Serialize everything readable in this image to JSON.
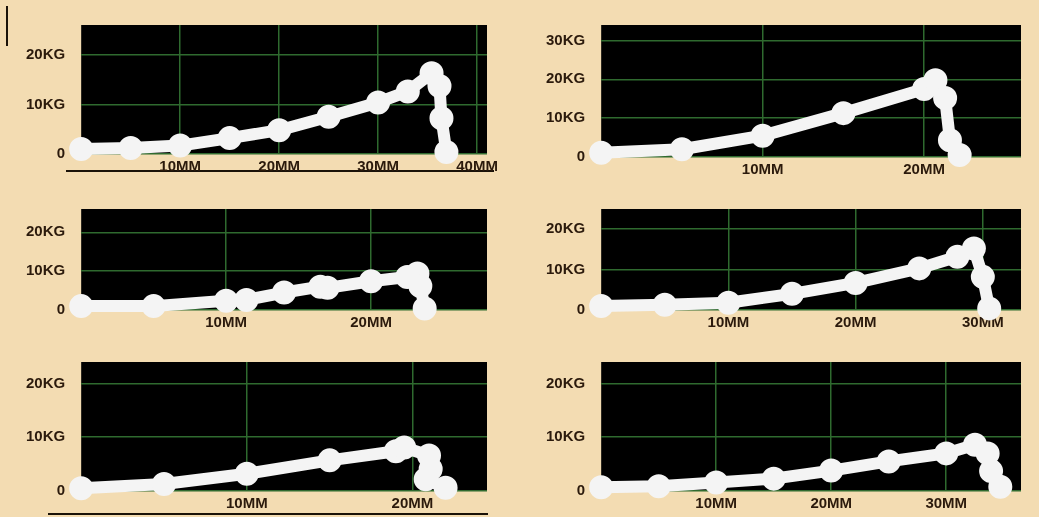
{
  "chart_data": [
    {
      "type": "line",
      "series": [
        {
          "color": "#f4f4f4",
          "x": [
            0,
            5,
            10,
            15,
            20,
            25,
            30,
            33,
            35.4,
            36.2,
            36.4,
            36.9
          ],
          "values": [
            1,
            1.2,
            1.7,
            3.2,
            4.8,
            7.5,
            10.4,
            12.6,
            16.3,
            13.7,
            7.2,
            0.4
          ]
        }
      ],
      "xlim": [
        0,
        41
      ],
      "xticks": [
        {
          "value": 10,
          "label": "10MM"
        },
        {
          "value": 20,
          "label": "20MM"
        },
        {
          "value": 30,
          "label": "30MM"
        },
        {
          "value": 40,
          "label": "40MM"
        }
      ],
      "ylim": [
        0,
        26
      ],
      "yticks": [
        {
          "value": 0,
          "label": "0"
        },
        {
          "value": 10,
          "label": "10KG"
        },
        {
          "value": 20,
          "label": "20KG"
        }
      ],
      "grid": true,
      "marker": "circle"
    },
    {
      "type": "line",
      "series": [
        {
          "color": "#f4f4f4",
          "x": [
            0,
            5,
            10,
            15,
            20,
            20.7,
            21.3,
            21.6,
            22.2
          ],
          "values": [
            1.1,
            2,
            5.5,
            11.3,
            17.5,
            19.8,
            15.2,
            4.3,
            0.5
          ]
        }
      ],
      "xlim": [
        0,
        26
      ],
      "xticks": [
        {
          "value": 10,
          "label": "10MM"
        },
        {
          "value": 20,
          "label": "20MM"
        }
      ],
      "ylim": [
        0,
        34
      ],
      "yticks": [
        {
          "value": 0,
          "label": "0"
        },
        {
          "value": 10,
          "label": "10KG"
        },
        {
          "value": 20,
          "label": "20KG"
        },
        {
          "value": 30,
          "label": "30KG"
        }
      ],
      "grid": true,
      "marker": "circle"
    },
    {
      "type": "line",
      "series": [
        {
          "color": "#f4f4f4",
          "x": [
            0,
            5,
            10,
            11.4,
            14,
            16.5,
            17,
            20,
            22.5,
            23.2,
            23.4,
            23.7
          ],
          "values": [
            1,
            1,
            2.4,
            2.6,
            4.5,
            6,
            5.7,
            7.4,
            8.5,
            9.4,
            6.2,
            0.4
          ]
        }
      ],
      "xlim": [
        0,
        28
      ],
      "xticks": [
        {
          "value": 10,
          "label": "10MM"
        },
        {
          "value": 20,
          "label": "20MM"
        }
      ],
      "ylim": [
        0,
        26
      ],
      "yticks": [
        {
          "value": 0,
          "label": "0"
        },
        {
          "value": 10,
          "label": "10KG"
        },
        {
          "value": 20,
          "label": "20KG"
        }
      ],
      "grid": true,
      "marker": "circle"
    },
    {
      "type": "line",
      "series": [
        {
          "color": "#f4f4f4",
          "x": [
            0,
            5,
            10,
            15,
            20,
            25,
            28,
            29.3,
            30,
            30.5
          ],
          "values": [
            1,
            1.3,
            1.8,
            4,
            6.7,
            10.3,
            13.2,
            15.2,
            8.2,
            0.4
          ]
        }
      ],
      "xlim": [
        0,
        33
      ],
      "xticks": [
        {
          "value": 10,
          "label": "10MM"
        },
        {
          "value": 20,
          "label": "20MM"
        },
        {
          "value": 30,
          "label": "30MM"
        }
      ],
      "ylim": [
        0,
        25
      ],
      "yticks": [
        {
          "value": 0,
          "label": "0"
        },
        {
          "value": 10,
          "label": "10KG"
        },
        {
          "value": 20,
          "label": "20KG"
        }
      ],
      "grid": true,
      "marker": "circle"
    },
    {
      "type": "line",
      "series": [
        {
          "color": "#f4f4f4",
          "x": [
            0,
            5,
            10,
            15,
            19,
            19.5,
            21,
            21.1,
            20.8,
            22
          ],
          "values": [
            0.5,
            1.3,
            3.2,
            5.7,
            7.4,
            8.1,
            6.6,
            4.1,
            2.2,
            0.6
          ]
        }
      ],
      "xlim": [
        0,
        24.5
      ],
      "xticks": [
        {
          "value": 10,
          "label": "10MM"
        },
        {
          "value": 20,
          "label": "20MM"
        }
      ],
      "ylim": [
        0,
        24
      ],
      "yticks": [
        {
          "value": 0,
          "label": "0"
        },
        {
          "value": 10,
          "label": "10KG"
        },
        {
          "value": 20,
          "label": "20KG"
        }
      ],
      "grid": true,
      "marker": "circle"
    },
    {
      "type": "line",
      "series": [
        {
          "color": "#f4f4f4",
          "x": [
            0,
            5,
            10,
            15,
            20,
            25,
            30,
            32.5,
            33.6,
            33.9,
            34.7
          ],
          "values": [
            0.7,
            0.9,
            1.6,
            2.3,
            3.8,
            5.5,
            7,
            8.6,
            7,
            3.7,
            0.8
          ]
        }
      ],
      "xlim": [
        0,
        36.5
      ],
      "xticks": [
        {
          "value": 10,
          "label": "10MM"
        },
        {
          "value": 20,
          "label": "20MM"
        },
        {
          "value": 30,
          "label": "30MM"
        }
      ],
      "ylim": [
        0,
        24
      ],
      "yticks": [
        {
          "value": 0,
          "label": "0"
        },
        {
          "value": 10,
          "label": "10KG"
        },
        {
          "value": 20,
          "label": "20KG"
        }
      ],
      "grid": true,
      "marker": "circle"
    }
  ]
}
